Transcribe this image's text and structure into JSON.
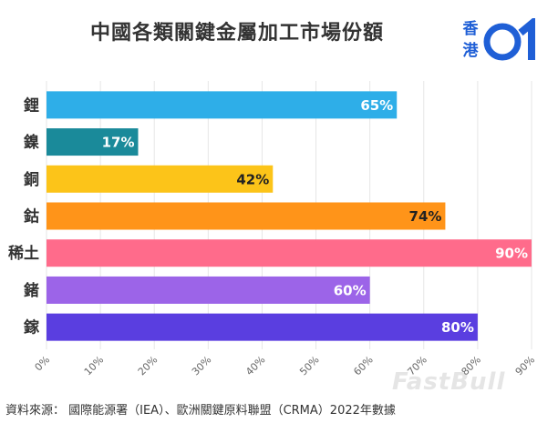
{
  "header": {
    "title": "中國各類關鍵金屬加工市場份額"
  },
  "logo": {
    "text_line1": "香",
    "text_line2": "港",
    "mark": "01",
    "color": "#1f5fd6"
  },
  "chart_data": {
    "type": "bar",
    "orientation": "horizontal",
    "categories": [
      "鋰",
      "鎳",
      "銅",
      "鈷",
      "稀土",
      "鍺",
      "鎵"
    ],
    "values": [
      65,
      17,
      42,
      74,
      90,
      60,
      80
    ],
    "data_labels": [
      "65%",
      "17%",
      "42%",
      "74%",
      "90%",
      "60%",
      "80%"
    ],
    "colors": [
      "#2eaee8",
      "#1a8a9a",
      "#fcc419",
      "#ff9419",
      "#ff6b8b",
      "#9c64e8",
      "#5a3ee0"
    ],
    "label_colors": [
      "#ffffff",
      "#ffffff",
      "#222222",
      "#222222",
      "#ffffff",
      "#ffffff",
      "#ffffff"
    ],
    "xlim": [
      0,
      90
    ],
    "xticks": [
      "0%",
      "10%",
      "20%",
      "30%",
      "40%",
      "50%",
      "60%",
      "70%",
      "80%",
      "90%"
    ],
    "grid": true
  },
  "source": "資料來源： 國際能源署（IEA）、歐洲關鍵原料聯盟（CRMA）2022年數據",
  "watermark": "FastBull"
}
